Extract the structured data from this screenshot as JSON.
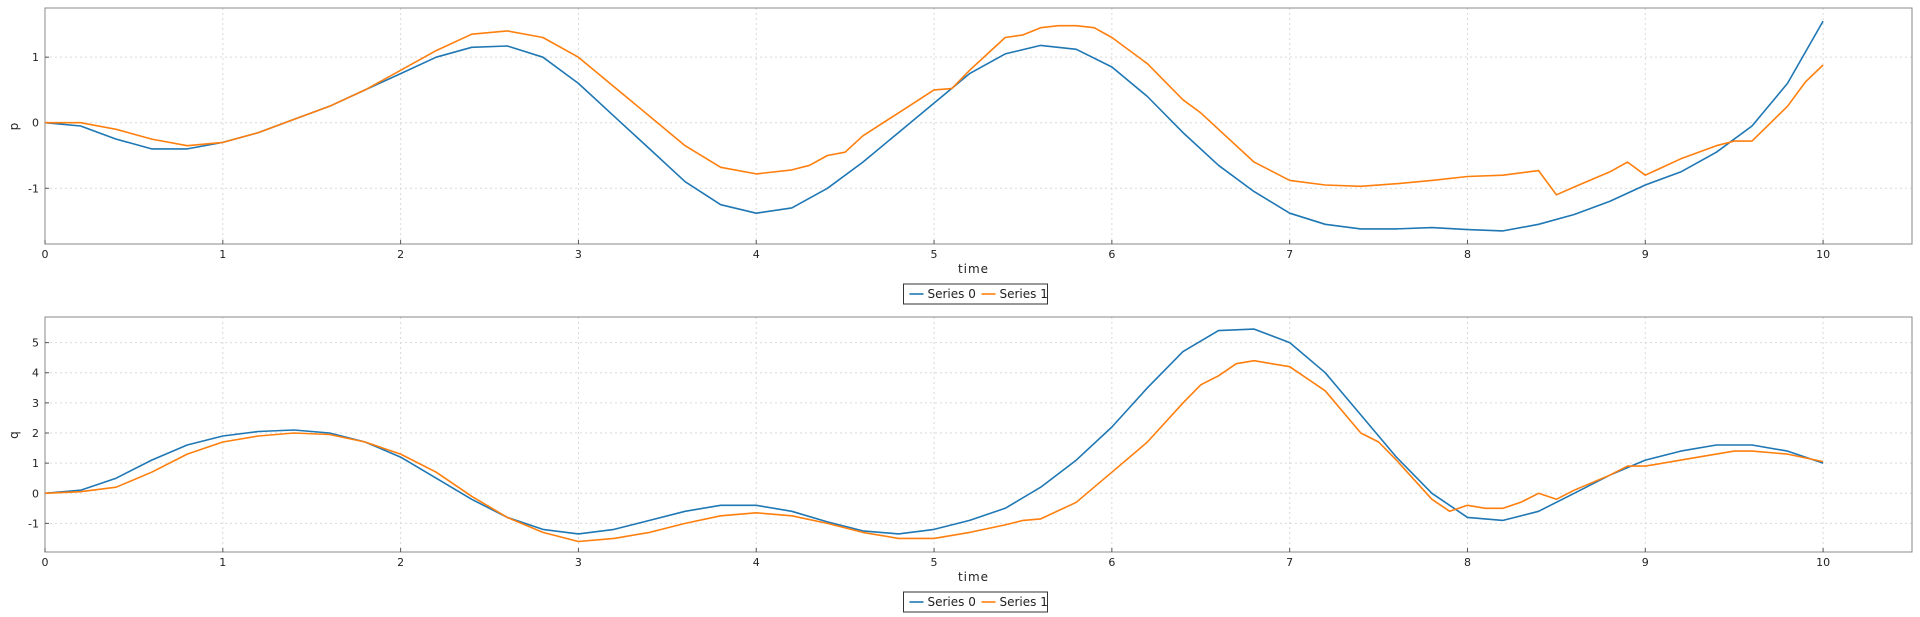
{
  "chart_data": [
    {
      "type": "line",
      "title": "",
      "xlabel": "time",
      "ylabel": "p",
      "xlim": [
        0,
        10.5
      ],
      "ylim": [
        -1.85,
        1.75
      ],
      "xticks": [
        0,
        1,
        2,
        3,
        4,
        5,
        6,
        7,
        8,
        9,
        10
      ],
      "yticks": [
        -1,
        0,
        1
      ],
      "grid": true,
      "legend_position": "bottom-center",
      "series": [
        {
          "name": "Series 0",
          "color": "#1f77b4",
          "x": [
            0,
            0.2,
            0.4,
            0.6,
            0.8,
            1.0,
            1.2,
            1.4,
            1.6,
            1.8,
            2.0,
            2.2,
            2.4,
            2.6,
            2.8,
            3.0,
            3.2,
            3.4,
            3.6,
            3.8,
            4.0,
            4.2,
            4.4,
            4.6,
            4.8,
            5.0,
            5.2,
            5.4,
            5.6,
            5.8,
            6.0,
            6.2,
            6.4,
            6.6,
            6.8,
            7.0,
            7.2,
            7.4,
            7.6,
            7.8,
            8.0,
            8.2,
            8.4,
            8.6,
            8.8,
            9.0,
            9.2,
            9.4,
            9.6,
            9.8,
            10.0
          ],
          "y": [
            0,
            -0.05,
            -0.25,
            -0.4,
            -0.4,
            -0.3,
            -0.15,
            0.05,
            0.25,
            0.5,
            0.75,
            1.0,
            1.15,
            1.17,
            1.0,
            0.6,
            0.1,
            -0.4,
            -0.9,
            -1.25,
            -1.38,
            -1.3,
            -1.0,
            -0.6,
            -0.15,
            0.3,
            0.75,
            1.05,
            1.18,
            1.12,
            0.85,
            0.4,
            -0.15,
            -0.65,
            -1.05,
            -1.38,
            -1.55,
            -1.62,
            -1.62,
            -1.6,
            -1.63,
            -1.65,
            -1.55,
            -1.4,
            -1.2,
            -0.95,
            -0.75,
            -0.45,
            -0.05,
            0.6,
            1.55
          ]
        },
        {
          "name": "Series 1",
          "color": "#ff7f0e",
          "x": [
            0,
            0.2,
            0.4,
            0.6,
            0.8,
            1.0,
            1.2,
            1.4,
            1.6,
            1.8,
            2.0,
            2.2,
            2.4,
            2.6,
            2.8,
            3.0,
            3.2,
            3.4,
            3.6,
            3.8,
            4.0,
            4.2,
            4.3,
            4.4,
            4.5,
            4.6,
            4.8,
            5.0,
            5.1,
            5.2,
            5.4,
            5.5,
            5.6,
            5.7,
            5.8,
            5.9,
            6.0,
            6.2,
            6.4,
            6.5,
            6.6,
            6.8,
            7.0,
            7.2,
            7.4,
            7.6,
            7.8,
            8.0,
            8.2,
            8.4,
            8.5,
            8.6,
            8.8,
            8.9,
            9.0,
            9.2,
            9.4,
            9.5,
            9.6,
            9.8,
            9.9,
            10.0
          ],
          "y": [
            0,
            0,
            -0.1,
            -0.25,
            -0.35,
            -0.3,
            -0.15,
            0.05,
            0.25,
            0.5,
            0.8,
            1.1,
            1.35,
            1.4,
            1.3,
            1.0,
            0.55,
            0.1,
            -0.35,
            -0.68,
            -0.78,
            -0.72,
            -0.65,
            -0.5,
            -0.45,
            -0.2,
            0.15,
            0.5,
            0.52,
            0.8,
            1.3,
            1.34,
            1.45,
            1.48,
            1.48,
            1.45,
            1.3,
            0.9,
            0.35,
            0.15,
            -0.1,
            -0.6,
            -0.88,
            -0.95,
            -0.97,
            -0.93,
            -0.88,
            -0.82,
            -0.8,
            -0.73,
            -1.1,
            -0.98,
            -0.75,
            -0.6,
            -0.8,
            -0.55,
            -0.35,
            -0.28,
            -0.28,
            0.25,
            0.62,
            0.88
          ]
        }
      ]
    },
    {
      "type": "line",
      "title": "",
      "xlabel": "time",
      "ylabel": "q",
      "xlim": [
        0,
        10.5
      ],
      "ylim": [
        -1.95,
        5.85
      ],
      "xticks": [
        0,
        1,
        2,
        3,
        4,
        5,
        6,
        7,
        8,
        9,
        10
      ],
      "yticks": [
        -1,
        0,
        1,
        2,
        3,
        4,
        5
      ],
      "grid": true,
      "legend_position": "bottom-center",
      "series": [
        {
          "name": "Series 0",
          "color": "#1f77b4",
          "x": [
            0,
            0.2,
            0.4,
            0.6,
            0.8,
            1.0,
            1.2,
            1.4,
            1.6,
            1.8,
            2.0,
            2.2,
            2.4,
            2.6,
            2.8,
            3.0,
            3.2,
            3.4,
            3.6,
            3.8,
            4.0,
            4.2,
            4.4,
            4.6,
            4.8,
            5.0,
            5.2,
            5.4,
            5.6,
            5.8,
            6.0,
            6.2,
            6.4,
            6.6,
            6.8,
            7.0,
            7.2,
            7.4,
            7.6,
            7.8,
            8.0,
            8.2,
            8.4,
            8.6,
            8.8,
            9.0,
            9.2,
            9.4,
            9.6,
            9.8,
            10.0
          ],
          "y": [
            0,
            0.1,
            0.5,
            1.1,
            1.6,
            1.9,
            2.05,
            2.1,
            2.0,
            1.7,
            1.2,
            0.5,
            -0.2,
            -0.8,
            -1.2,
            -1.35,
            -1.2,
            -0.9,
            -0.6,
            -0.4,
            -0.4,
            -0.6,
            -0.95,
            -1.25,
            -1.35,
            -1.2,
            -0.9,
            -0.5,
            0.2,
            1.1,
            2.2,
            3.5,
            4.7,
            5.4,
            5.45,
            5.0,
            4.0,
            2.6,
            1.2,
            0.0,
            -0.8,
            -0.9,
            -0.6,
            0.0,
            0.6,
            1.1,
            1.4,
            1.6,
            1.6,
            1.4,
            1.0
          ]
        },
        {
          "name": "Series 1",
          "color": "#ff7f0e",
          "x": [
            0,
            0.2,
            0.4,
            0.6,
            0.8,
            1.0,
            1.2,
            1.4,
            1.6,
            1.8,
            2.0,
            2.2,
            2.4,
            2.6,
            2.8,
            3.0,
            3.2,
            3.4,
            3.6,
            3.8,
            4.0,
            4.2,
            4.4,
            4.6,
            4.8,
            5.0,
            5.2,
            5.4,
            5.5,
            5.6,
            5.8,
            5.9,
            6.0,
            6.2,
            6.4,
            6.5,
            6.6,
            6.7,
            6.8,
            7.0,
            7.2,
            7.4,
            7.5,
            7.6,
            7.8,
            7.9,
            8.0,
            8.1,
            8.2,
            8.3,
            8.4,
            8.5,
            8.6,
            8.8,
            8.9,
            9.0,
            9.2,
            9.4,
            9.5,
            9.6,
            9.8,
            10.0
          ],
          "y": [
            0,
            0.05,
            0.2,
            0.7,
            1.3,
            1.7,
            1.9,
            2.0,
            1.95,
            1.7,
            1.3,
            0.7,
            -0.1,
            -0.8,
            -1.3,
            -1.6,
            -1.5,
            -1.3,
            -1.0,
            -0.75,
            -0.65,
            -0.75,
            -1.0,
            -1.3,
            -1.5,
            -1.5,
            -1.3,
            -1.05,
            -0.9,
            -0.85,
            -0.3,
            0.2,
            0.7,
            1.7,
            3.0,
            3.6,
            3.9,
            4.3,
            4.4,
            4.2,
            3.4,
            2.0,
            1.7,
            1.1,
            -0.2,
            -0.6,
            -0.4,
            -0.5,
            -0.5,
            -0.3,
            0.0,
            -0.2,
            0.1,
            0.6,
            0.9,
            0.9,
            1.1,
            1.3,
            1.4,
            1.4,
            1.3,
            1.05
          ]
        }
      ]
    }
  ]
}
